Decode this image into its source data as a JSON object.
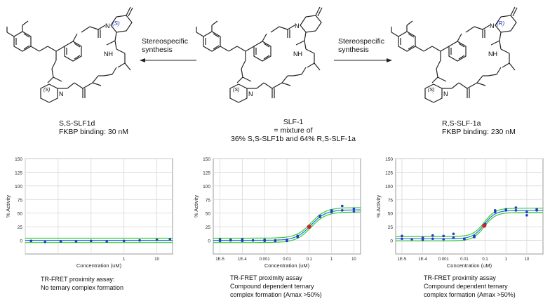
{
  "molecules": [
    {
      "name": "S,S-SLF1d",
      "line2": "FKBP binding: 30 nM",
      "stereo_top": "(S)",
      "stereo_bottom": "(S)"
    },
    {
      "name": "SLF-1",
      "line2": "= mixture of",
      "line3": "36% S,S-SLF1b and 64% R,S-SLF-1a",
      "stereo_bottom": "(S)"
    },
    {
      "name": "R,S-SLF-1a",
      "line2": "FKBP binding: 230 nM",
      "stereo_top": "(R)",
      "stereo_bottom": "(S)"
    }
  ],
  "atoms": {
    "n": "N",
    "o": "O",
    "nh": "NH",
    "methoxy": "O"
  },
  "arrows": [
    {
      "label1": "Stereospecific",
      "label2": "synthesis"
    },
    {
      "label1": "Stereospecific",
      "label2": "synthesis"
    }
  ],
  "chart_data": [
    {
      "type": "scatter",
      "ylabel": "% Activity",
      "xlabel": "Concentration (uM)",
      "x_scale": "log",
      "xlim": [
        0.001,
        30
      ],
      "ylim": [
        -25,
        150
      ],
      "yticks": [
        0,
        25,
        50,
        75,
        100,
        125,
        150
      ],
      "xticks": [
        {
          "v": 1,
          "label": "1"
        },
        {
          "v": 10,
          "label": "10"
        }
      ],
      "points": [
        [
          0.0015,
          -1
        ],
        [
          0.004,
          -3
        ],
        [
          0.012,
          -2
        ],
        [
          0.035,
          -2
        ],
        [
          0.1,
          -1
        ],
        [
          0.3,
          -2
        ],
        [
          1,
          -1
        ],
        [
          3,
          0
        ],
        [
          10,
          1
        ],
        [
          25,
          2
        ]
      ],
      "fit": "flat",
      "caption1": "TR-FRET proximity assay:",
      "caption2": "No ternary complex formation"
    },
    {
      "type": "scatter",
      "ylabel": "% Activity",
      "xlabel": "Concentration (uM)",
      "x_scale": "log",
      "xlim": [
        5e-06,
        20
      ],
      "ylim": [
        -25,
        150
      ],
      "yticks": [
        0,
        25,
        50,
        75,
        100,
        125,
        150
      ],
      "xticks": [
        {
          "v": 1e-05,
          "label": "1E-5"
        },
        {
          "v": 0.0001,
          "label": "1E-4"
        },
        {
          "v": 0.001,
          "label": "0.001"
        },
        {
          "v": 0.01,
          "label": "0.01"
        },
        {
          "v": 0.1,
          "label": "0.1"
        },
        {
          "v": 1,
          "label": "1"
        },
        {
          "v": 10,
          "label": "10"
        }
      ],
      "points": [
        [
          1e-05,
          2
        ],
        [
          1e-05,
          -1
        ],
        [
          3e-05,
          0
        ],
        [
          3e-05,
          1
        ],
        [
          0.0001,
          -1
        ],
        [
          0.0001,
          2
        ],
        [
          0.0003,
          0
        ],
        [
          0.001,
          1
        ],
        [
          0.001,
          -1
        ],
        [
          0.003,
          -1
        ],
        [
          0.003,
          0
        ],
        [
          0.01,
          1
        ],
        [
          0.01,
          -1
        ],
        [
          0.03,
          8
        ],
        [
          0.03,
          6
        ],
        [
          0.1,
          26
        ],
        [
          0.1,
          24
        ],
        [
          0.3,
          45
        ],
        [
          0.3,
          43
        ],
        [
          1,
          55
        ],
        [
          1,
          52
        ],
        [
          3,
          63
        ],
        [
          3,
          55
        ],
        [
          10,
          58
        ],
        [
          10,
          53
        ]
      ],
      "highlight": [
        0.1,
        25
      ],
      "fit": {
        "bottom": 0,
        "top": 56,
        "ec50": 0.12,
        "hill": 1.3
      },
      "caption1": "TR-FRET proximity assay",
      "caption2": "Compound dependent ternary",
      "caption3": "complex formation (Amax >50%)"
    },
    {
      "type": "scatter",
      "ylabel": "% Activity",
      "xlabel": "Concentration (uM)",
      "x_scale": "log",
      "xlim": [
        5e-06,
        60
      ],
      "ylim": [
        -25,
        150
      ],
      "yticks": [
        0,
        25,
        50,
        75,
        100,
        125,
        150
      ],
      "xticks": [
        {
          "v": 1e-05,
          "label": "1E-5"
        },
        {
          "v": 0.0001,
          "label": "1E-4"
        },
        {
          "v": 0.001,
          "label": "0.001"
        },
        {
          "v": 0.01,
          "label": "0.01"
        },
        {
          "v": 0.1,
          "label": "0.1"
        },
        {
          "v": 1,
          "label": "1"
        },
        {
          "v": 10,
          "label": "10"
        }
      ],
      "points": [
        [
          1e-05,
          3
        ],
        [
          1e-05,
          8
        ],
        [
          3e-05,
          2
        ],
        [
          0.0001,
          5
        ],
        [
          0.0001,
          1
        ],
        [
          0.0003,
          9
        ],
        [
          0.0003,
          3
        ],
        [
          0.001,
          2
        ],
        [
          0.001,
          8
        ],
        [
          0.003,
          5
        ],
        [
          0.003,
          12
        ],
        [
          0.01,
          3
        ],
        [
          0.01,
          2
        ],
        [
          0.03,
          6
        ],
        [
          0.03,
          8
        ],
        [
          0.1,
          28
        ],
        [
          0.1,
          30
        ],
        [
          0.3,
          55
        ],
        [
          0.3,
          52
        ],
        [
          1,
          55
        ],
        [
          1,
          57
        ],
        [
          3,
          60
        ],
        [
          3,
          55
        ],
        [
          10,
          52
        ],
        [
          10,
          46
        ],
        [
          30,
          55
        ],
        [
          30,
          57
        ]
      ],
      "highlight": [
        0.09,
        27
      ],
      "fit": {
        "bottom": 3,
        "top": 55,
        "ec50": 0.09,
        "hill": 1.6
      },
      "caption1": "TR-FRET proximity assay",
      "caption2": "Compound dependent ternary",
      "caption3": "complex formation (Amax >50%)"
    }
  ],
  "colors": {
    "point": "#1f3fbf",
    "highlight": "#cc2222",
    "fit": "#2a6de0",
    "band": "#33cc33",
    "grid": "#d8d8d8",
    "stereo": "#1a2fb0"
  }
}
